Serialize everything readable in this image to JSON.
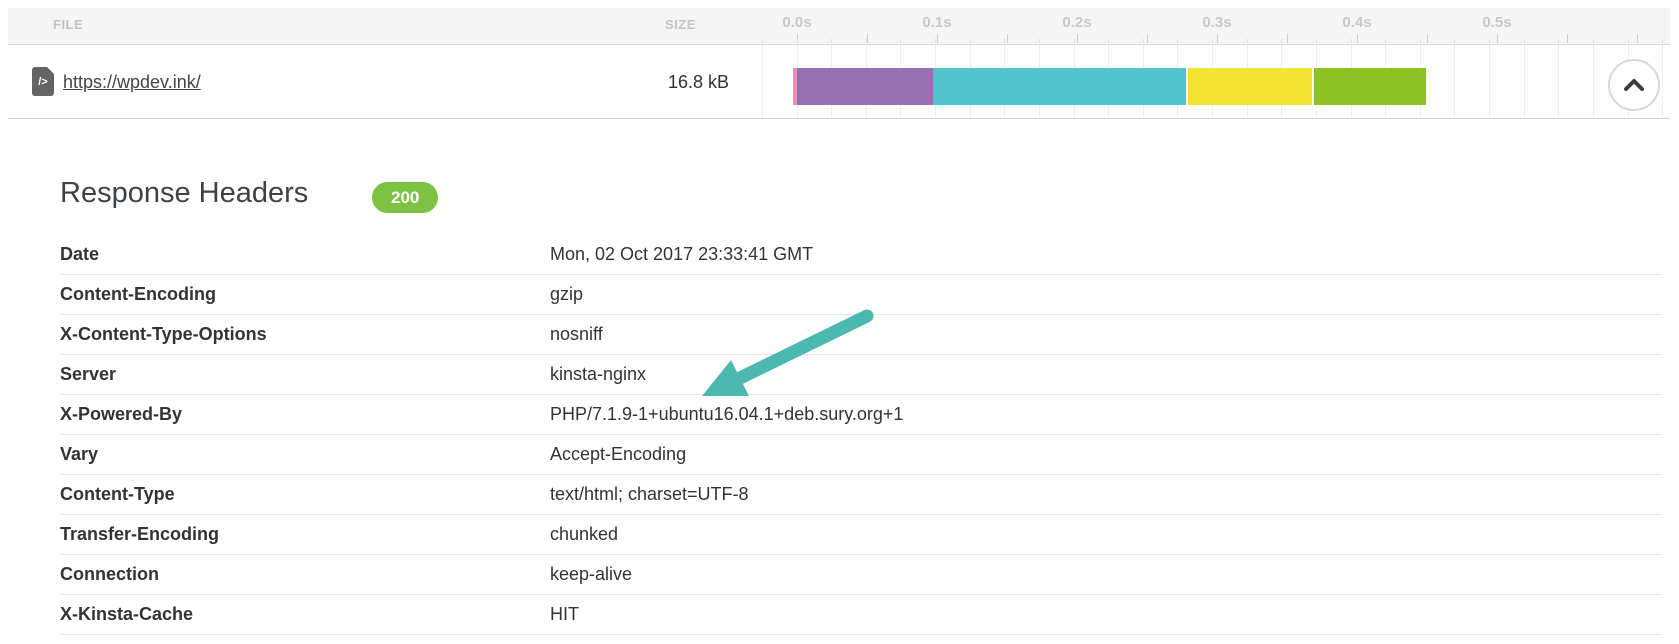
{
  "waterfall_panel": {
    "file_column_label": "FILE",
    "size_column_label": "SIZE",
    "timeline_tick_labels": [
      "0.0s",
      "0.1s",
      "0.2s",
      "0.3s",
      "0.4s",
      "0.5s"
    ],
    "request": {
      "url": "https://wpdev.ink/",
      "size": "16.8 kB"
    },
    "chart_data": {
      "type": "waterfall-bar",
      "x_axis": {
        "unit": "seconds",
        "tick_labels": [
          "0.0s",
          "0.1s",
          "0.2s",
          "0.3s",
          "0.4s",
          "0.5s"
        ],
        "tick_interval_s": 0.05,
        "visible_range_s": [
          0.0,
          0.62
        ]
      },
      "segments": [
        {
          "color_name": "pink",
          "color": "#ef8db4",
          "start_s": 0.0,
          "end_s": 0.003
        },
        {
          "color_name": "purple",
          "color": "#9672b4",
          "start_s": 0.003,
          "end_s": 0.1
        },
        {
          "color_name": "teal",
          "color": "#52c4ce",
          "start_s": 0.1,
          "end_s": 0.281
        },
        {
          "color_name": "yellow",
          "color": "#f5e331",
          "start_s": 0.282,
          "end_s": 0.371
        },
        {
          "color_name": "green",
          "color": "#8cc321",
          "start_s": 0.372,
          "end_s": 0.452
        }
      ],
      "total_duration_s": 0.452
    },
    "collapse_button_icon": "chevron-up"
  },
  "response_headers": {
    "title": "Response Headers",
    "status_badge": "200",
    "rows": [
      {
        "name": "Date",
        "value": "Mon, 02 Oct 2017 23:33:41 GMT"
      },
      {
        "name": "Content-Encoding",
        "value": "gzip"
      },
      {
        "name": "X-Content-Type-Options",
        "value": "nosniff"
      },
      {
        "name": "Server",
        "value": "kinsta-nginx"
      },
      {
        "name": "X-Powered-By",
        "value": "PHP/7.1.9-1+ubuntu16.04.1+deb.sury.org+1"
      },
      {
        "name": "Vary",
        "value": "Accept-Encoding"
      },
      {
        "name": "Content-Type",
        "value": "text/html; charset=UTF-8"
      },
      {
        "name": "Transfer-Encoding",
        "value": "chunked"
      },
      {
        "name": "Connection",
        "value": "keep-alive"
      },
      {
        "name": "X-Kinsta-Cache",
        "value": "HIT"
      }
    ],
    "annotation_arrow": {
      "color": "#4cb9b1",
      "points_to": "X-Powered-By value"
    }
  },
  "colors": {
    "badge_green": "#7dc242",
    "band_bg": "#f5f5f5",
    "text_dark": "#333333"
  }
}
